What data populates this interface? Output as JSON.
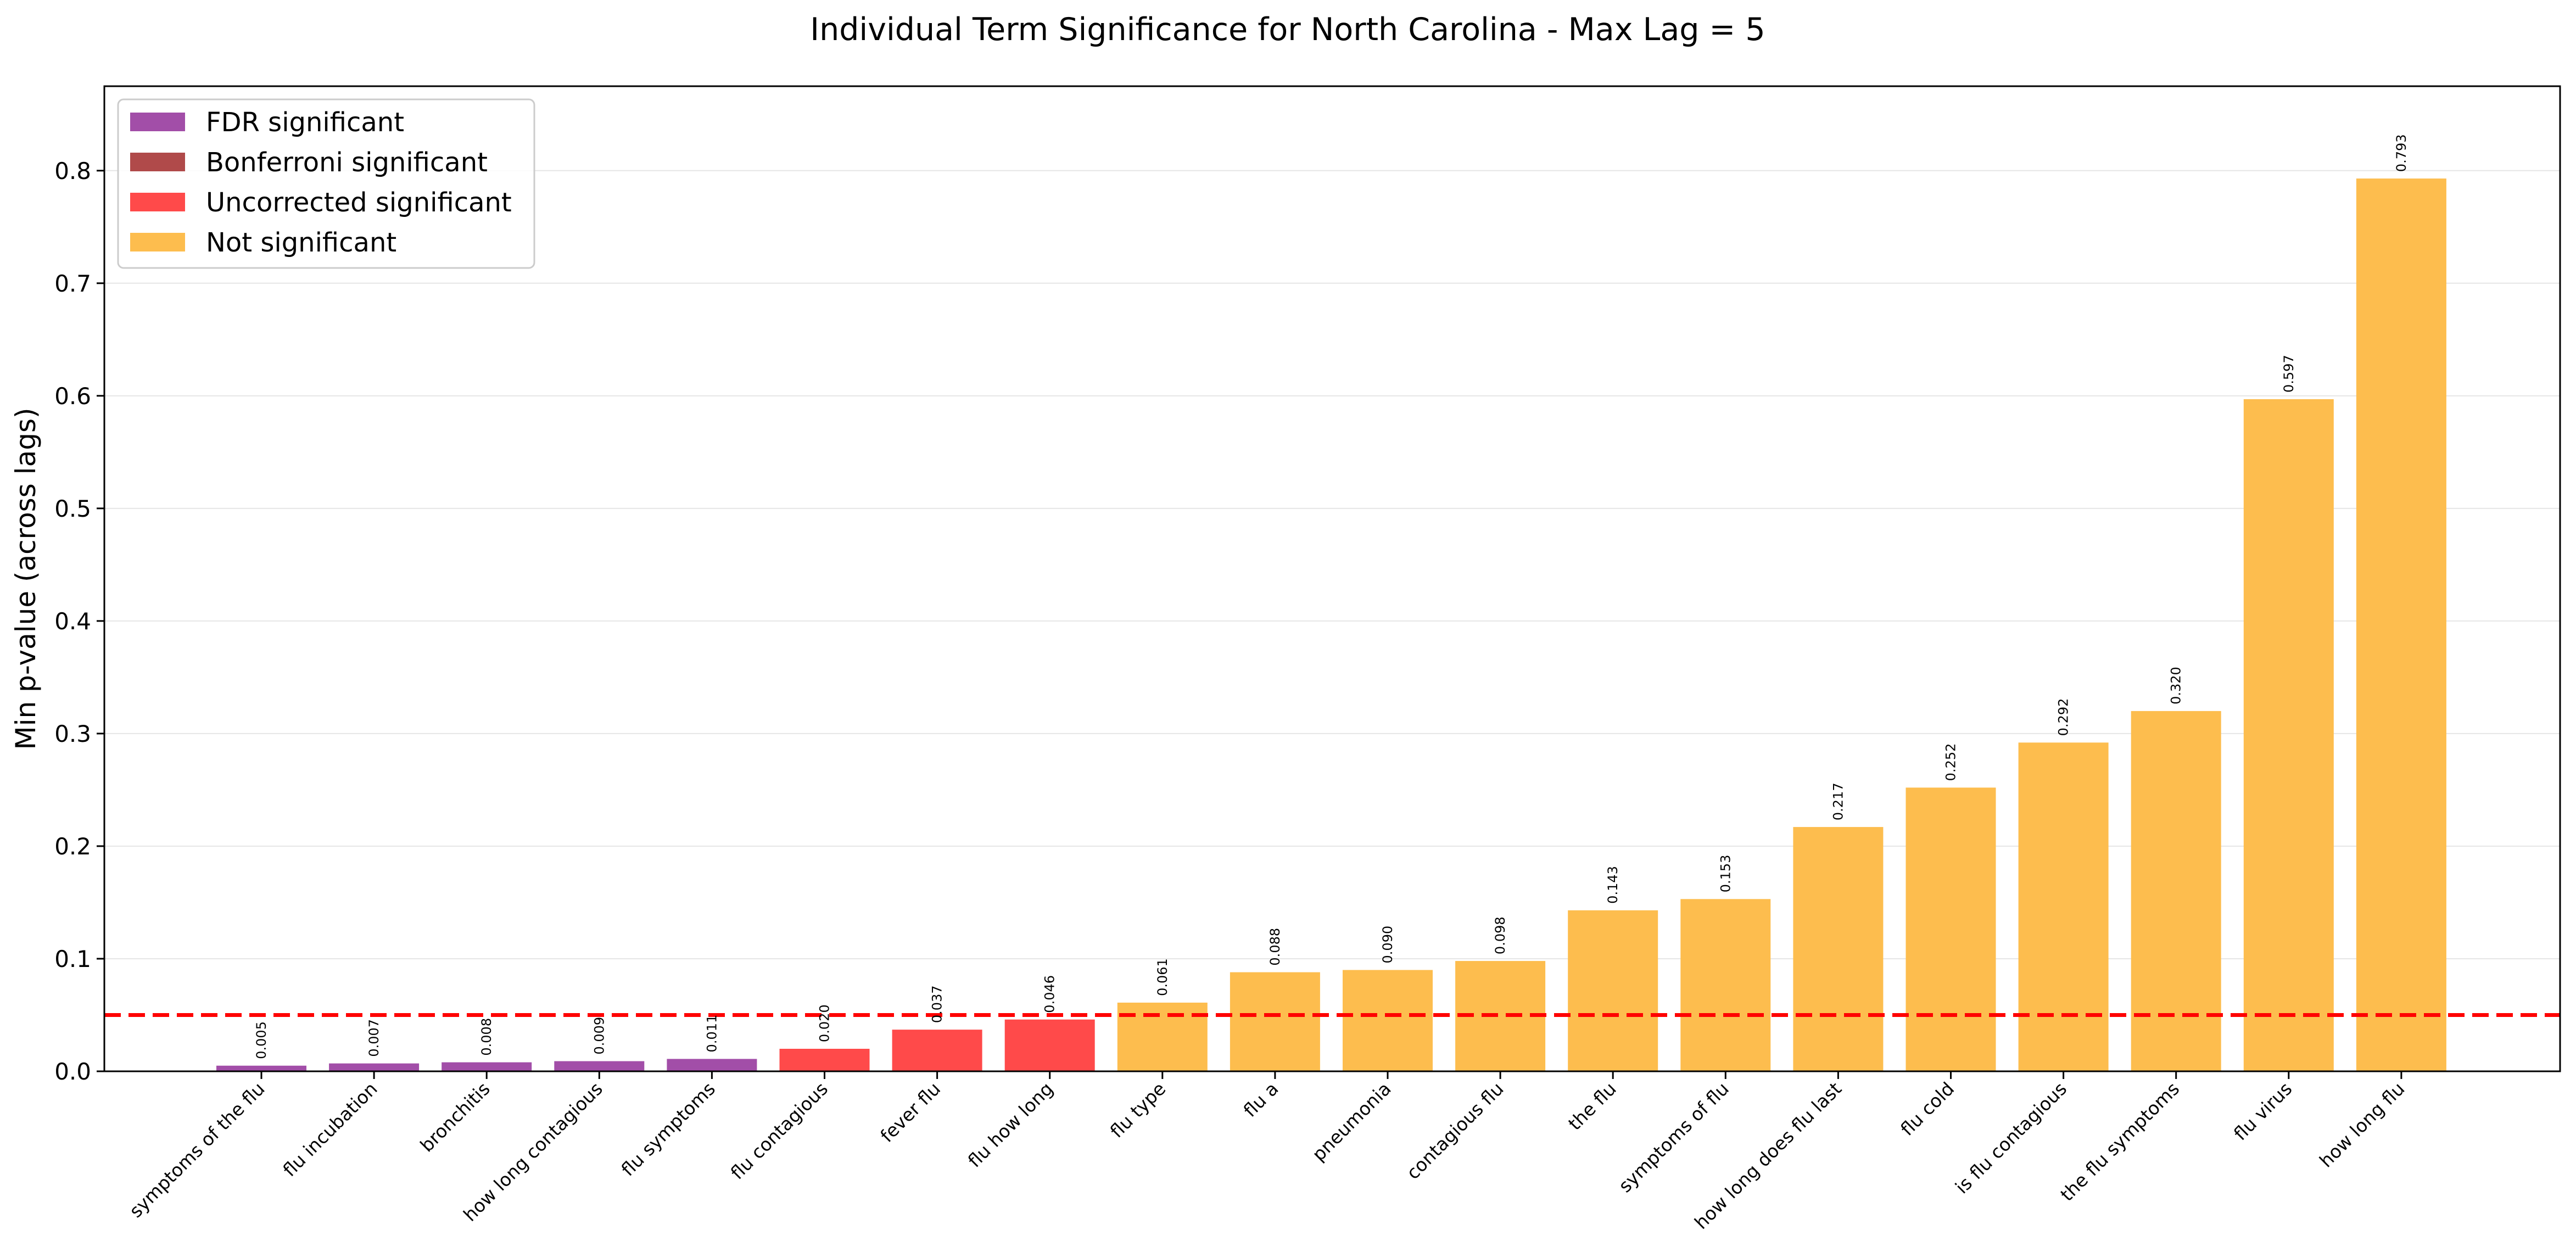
{
  "chart_data": {
    "type": "bar",
    "title": "Individual Term Significance for North Carolina - Max Lag = 5",
    "xlabel": "",
    "ylabel": "Min p-value (across lags)",
    "ylim": [
      0,
      0.875
    ],
    "yticks": [
      "0.0",
      "0.1",
      "0.2",
      "0.3",
      "0.4",
      "0.5",
      "0.6",
      "0.7",
      "0.8"
    ],
    "grid": "y",
    "threshold": 0.05,
    "legend_position": "top-left",
    "legend": [
      {
        "label": "FDR significant",
        "color": "#a24ea8"
      },
      {
        "label": "Bonferroni significant",
        "color": "#b04a4a"
      },
      {
        "label": "Uncorrected significant",
        "color": "#ff4a4a"
      },
      {
        "label": "Not significant",
        "color": "#fdbd4e"
      }
    ],
    "categories": [
      "symptoms of the flu",
      "flu incubation",
      "bronchitis",
      "how long contagious",
      "flu symptoms",
      "flu contagious",
      "fever flu",
      "flu how long",
      "flu type",
      "flu a",
      "pneumonia",
      "contagious flu",
      "the flu",
      "symptoms of flu",
      "how long does flu last",
      "flu cold",
      "is flu contagious",
      "the flu symptoms",
      "flu virus",
      "how long flu"
    ],
    "values": [
      0.005,
      0.007,
      0.008,
      0.009,
      0.011,
      0.02,
      0.037,
      0.046,
      0.061,
      0.088,
      0.09,
      0.098,
      0.143,
      0.153,
      0.217,
      0.252,
      0.292,
      0.32,
      0.597,
      0.793
    ],
    "value_labels": [
      "0.005",
      "0.007",
      "0.008",
      "0.009",
      "0.011",
      "0.020",
      "0.037",
      "0.046",
      "0.061",
      "0.088",
      "0.090",
      "0.098",
      "0.143",
      "0.153",
      "0.217",
      "0.252",
      "0.292",
      "0.320",
      "0.597",
      "0.793"
    ],
    "groups": [
      "FDR significant",
      "FDR significant",
      "FDR significant",
      "FDR significant",
      "FDR significant",
      "Uncorrected significant",
      "Uncorrected significant",
      "Uncorrected significant",
      "Not significant",
      "Not significant",
      "Not significant",
      "Not significant",
      "Not significant",
      "Not significant",
      "Not significant",
      "Not significant",
      "Not significant",
      "Not significant",
      "Not significant",
      "Not significant"
    ],
    "threshold_color": "#ff0000"
  }
}
